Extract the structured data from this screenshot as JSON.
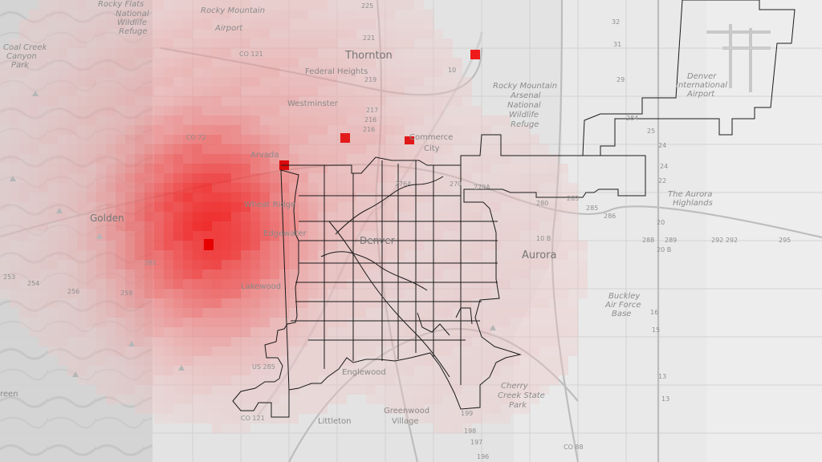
{
  "map": {
    "labels": {
      "thornton": "Thornton",
      "federal_heights": "Federal Heights",
      "westminster": "Westminster",
      "arvada": "Arvada",
      "wheat_ridge": "Wheat Ridge",
      "golden": "Golden",
      "edgewater": "Edgewater",
      "lakewood": "Lakewood",
      "denver": "Denver",
      "aurora": "Aurora",
      "englewood": "Englewood",
      "greenwood_village_1": "Greenwood",
      "greenwood_village_2": "Village",
      "littleton": "Littleton",
      "commerce_city_1": "Commerce",
      "commerce_city_2": "City",
      "the_aurora_highlands_1": "The Aurora",
      "the_aurora_highlands_2": "Highlands",
      "buckley_1": "Buckley",
      "buckley_2": "Air Force",
      "buckley_3": "Base",
      "cherry_creek_1": "Cherry",
      "cherry_creek_2": "Creek State",
      "cherry_creek_3": "Park",
      "rocky_flats_1": "Rocky Flats",
      "rocky_flats_2": "National",
      "rocky_flats_3": "Wildlife",
      "rocky_flats_4": "Refuge",
      "rma_1": "Rocky Mountain",
      "rma_2": "Arsenal",
      "rma_3": "National",
      "rma_4": "Wildlife",
      "rma_5": "Refuge",
      "airport_1": "Denver",
      "airport_2": "International",
      "airport_3": "Airport",
      "coal_creek_1": "Coal Creek",
      "coal_creek_2": "Canyon",
      "coal_creek_3": "Park",
      "rocky_mtn_airport_1": "Rocky Mountain",
      "rocky_mtn_airport_2": "Airport",
      "green_partial": "reen"
    },
    "roads": {
      "co121_n": "CO 121",
      "co72": "CO 72",
      "us285": "US 285",
      "co121_s": "CO 121",
      "co88": "CO 88",
      "r225": "225",
      "r221": "221",
      "r219": "219",
      "r217": "217",
      "r216": "216",
      "r216b": "216",
      "r270": "270",
      "r276": "276A",
      "r279": "279A",
      "r280": "280",
      "r283": "283",
      "r284": "284",
      "r285": "285",
      "r286": "286",
      "r288": "288",
      "r289": "289",
      "r292": "292 292",
      "r295": "295",
      "r10": "10",
      "r10b": "10 B",
      "r20": "20",
      "r20b": "20 B",
      "r24": "24",
      "r24b": "24",
      "r25": "25",
      "r22": "22",
      "r16": "16",
      "r15": "15",
      "r13": "13",
      "r13b": "13",
      "r199": "199",
      "r198": "198",
      "r197": "197",
      "r196": "196",
      "r254": "254",
      "r253": "253",
      "r256": "256",
      "r259": "259",
      "r261": "261",
      "r29": "29",
      "r31": "31",
      "r32": "32"
    },
    "heat_colors": {
      "low": "#f6d6d6",
      "mid": "#f39a9a",
      "high": "#ef4545",
      "peak": "#f00000"
    }
  }
}
